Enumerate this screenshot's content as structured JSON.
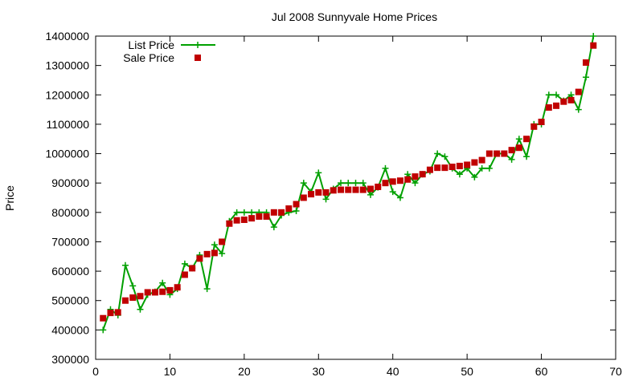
{
  "chart_data": {
    "type": "line",
    "title": "Jul 2008 Sunnyvale Home Prices",
    "xlabel": "",
    "ylabel": "Price",
    "xlim": [
      0,
      70
    ],
    "ylim": [
      300000,
      1400000
    ],
    "xticks": [
      "0",
      "10",
      "20",
      "30",
      "40",
      "50",
      "60",
      "70"
    ],
    "yticks": [
      "300000",
      "400000",
      "500000",
      "600000",
      "700000",
      "800000",
      "900000",
      "1000000",
      "1100000",
      "1200000",
      "1300000",
      "1400000"
    ],
    "legend": "top-left",
    "grid": false,
    "series": [
      {
        "name": "List Price",
        "style": "line-with-plus-markers",
        "color": "#00a000",
        "x": [
          1,
          2,
          3,
          4,
          5,
          6,
          7,
          8,
          9,
          10,
          11,
          12,
          13,
          14,
          15,
          16,
          17,
          18,
          19,
          20,
          21,
          22,
          23,
          24,
          25,
          26,
          27,
          28,
          29,
          30,
          31,
          32,
          33,
          34,
          35,
          36,
          37,
          38,
          39,
          40,
          41,
          42,
          43,
          44,
          45,
          46,
          47,
          48,
          49,
          50,
          51,
          52,
          53,
          54,
          55,
          56,
          57,
          58,
          59,
          60,
          61,
          62,
          63,
          64,
          65,
          66,
          67
        ],
        "values": [
          400000,
          470000,
          450000,
          620000,
          550000,
          470000,
          520000,
          530000,
          560000,
          520000,
          540000,
          625000,
          610000,
          655000,
          540000,
          690000,
          660000,
          770000,
          800000,
          800000,
          800000,
          800000,
          800000,
          750000,
          790000,
          800000,
          805000,
          900000,
          870000,
          935000,
          845000,
          880000,
          900000,
          900000,
          900000,
          900000,
          860000,
          885000,
          950000,
          870000,
          850000,
          930000,
          900000,
          930000,
          940000,
          1000000,
          990000,
          950000,
          930000,
          950000,
          920000,
          950000,
          950000,
          1000000,
          1000000,
          980000,
          1050000,
          990000,
          1100000,
          1100000,
          1200000,
          1200000,
          1180000,
          1200000,
          1150000,
          1260000,
          1400000
        ]
      },
      {
        "name": "Sale Price",
        "style": "square-markers",
        "color": "#c00000",
        "x": [
          1,
          2,
          3,
          4,
          5,
          6,
          7,
          8,
          9,
          10,
          11,
          12,
          13,
          14,
          15,
          16,
          17,
          18,
          19,
          20,
          21,
          22,
          23,
          24,
          25,
          26,
          27,
          28,
          29,
          30,
          31,
          32,
          33,
          34,
          35,
          36,
          37,
          38,
          39,
          40,
          41,
          42,
          43,
          44,
          45,
          46,
          47,
          48,
          49,
          50,
          51,
          52,
          53,
          54,
          55,
          56,
          57,
          58,
          59,
          60,
          61,
          62,
          63,
          64,
          65,
          66,
          67
        ],
        "values": [
          440000,
          458000,
          460000,
          500000,
          510000,
          515000,
          528000,
          528000,
          530000,
          535000,
          545000,
          588000,
          610000,
          643000,
          658000,
          662000,
          700000,
          762000,
          773000,
          775000,
          780000,
          786000,
          786000,
          800000,
          800000,
          813000,
          828000,
          850000,
          862000,
          868000,
          868000,
          875000,
          877000,
          877000,
          877000,
          877000,
          880000,
          887000,
          900000,
          905000,
          908000,
          912000,
          922000,
          930000,
          945000,
          952000,
          952000,
          955000,
          958000,
          962000,
          970000,
          978000,
          1000000,
          1000000,
          1000000,
          1012000,
          1020000,
          1050000,
          1092000,
          1108000,
          1157000,
          1163000,
          1177000,
          1182000,
          1210000,
          1310000,
          1368000
        ]
      }
    ]
  }
}
